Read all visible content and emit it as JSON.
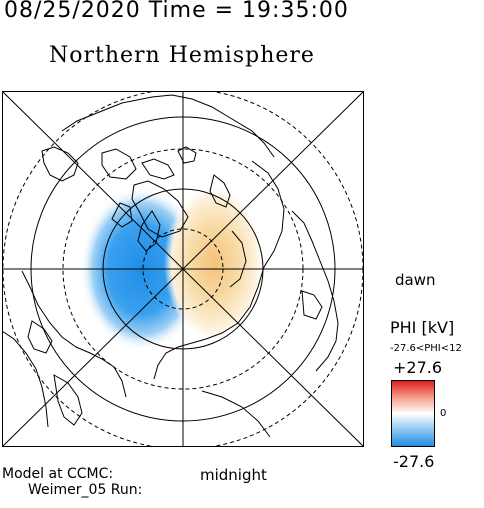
{
  "header": {
    "datetime": "08/25/2020 Time = 19:35:00",
    "hemisphere": "Northern Hemisphere"
  },
  "orientation": {
    "dawn": "dawn",
    "midnight": "midnight"
  },
  "colorbar": {
    "title": "PHI [kV]",
    "range_text": "-27.6<PHI<12",
    "max_label": "+27.6",
    "min_label": "-27.6",
    "zero_label": "0",
    "colors": {
      "max": "#dd1a1a",
      "mid": "#ffffff",
      "min": "#1a8ce0"
    }
  },
  "footer": {
    "model": "Model at CCMC:",
    "run": "Weimer_05 Run:"
  },
  "potential": {
    "negative_cell_peak_kv": -27.6,
    "positive_cell_peak_kv": 12
  }
}
